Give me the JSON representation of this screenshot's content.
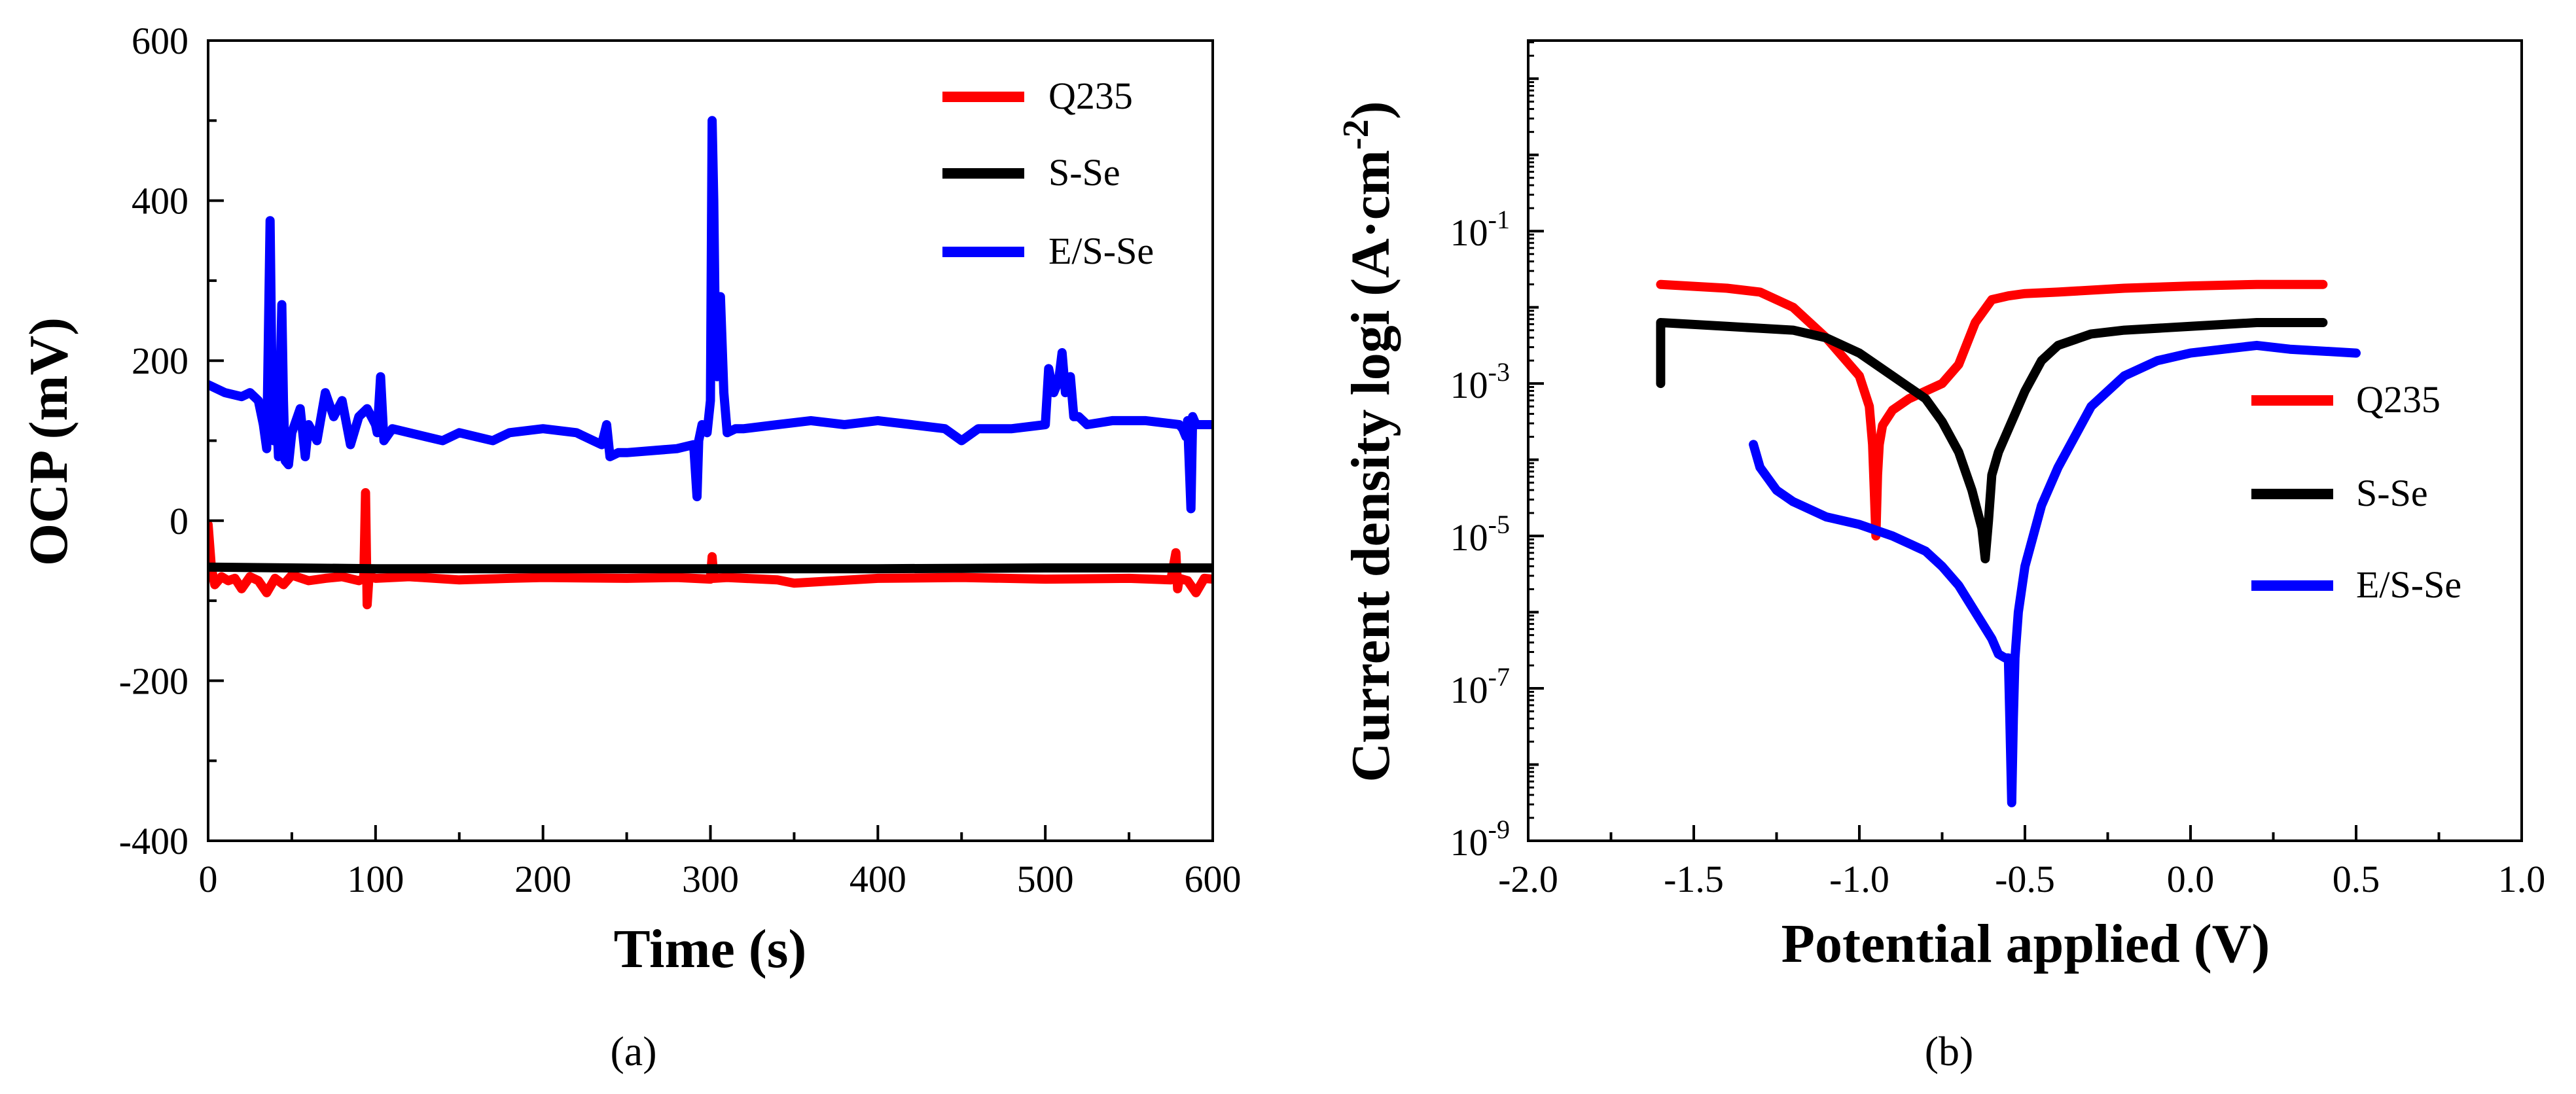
{
  "chart_data": [
    {
      "type": "line",
      "panel_label": "(a)",
      "xlabel": "Time (s)",
      "ylabel": "OCP (mV)",
      "xlim": [
        0,
        600
      ],
      "ylim": [
        -400,
        600
      ],
      "xticks": [
        0,
        100,
        200,
        300,
        400,
        500,
        600
      ],
      "yticks": [
        -400,
        -200,
        0,
        200,
        400,
        600
      ],
      "grid": false,
      "legend_position": "top-right",
      "series": [
        {
          "name": "Q235",
          "color": "#ff0000",
          "x": [
            0,
            2,
            4,
            8,
            12,
            16,
            20,
            25,
            30,
            35,
            40,
            45,
            50,
            60,
            70,
            80,
            90,
            93,
            94,
            95,
            96,
            97,
            100,
            120,
            150,
            180,
            200,
            250,
            280,
            300,
            301,
            302,
            310,
            340,
            350,
            400,
            450,
            500,
            550,
            575,
            578,
            579,
            580,
            585,
            590,
            595,
            600
          ],
          "y": [
            -5,
            -60,
            -80,
            -70,
            -75,
            -72,
            -85,
            -70,
            -75,
            -90,
            -72,
            -80,
            -68,
            -75,
            -72,
            -70,
            -75,
            -72,
            35,
            -105,
            -72,
            -70,
            -72,
            -70,
            -74,
            -72,
            -71,
            -72,
            -71,
            -73,
            -45,
            -72,
            -71,
            -74,
            -78,
            -72,
            -71,
            -73,
            -72,
            -74,
            -40,
            -85,
            -72,
            -75,
            -90,
            -72,
            -73
          ]
        },
        {
          "name": "S-Se",
          "color": "#000000",
          "x": [
            0,
            100,
            200,
            300,
            400,
            500,
            600
          ],
          "y": [
            -58,
            -60,
            -60,
            -60,
            -60,
            -59,
            -59
          ]
        },
        {
          "name": "E/S-Se",
          "color": "#0000ff",
          "x": [
            0,
            10,
            20,
            25,
            30,
            33,
            35,
            37,
            38,
            39,
            40,
            42,
            44,
            45,
            46,
            48,
            50,
            55,
            58,
            60,
            65,
            70,
            75,
            80,
            85,
            90,
            95,
            100,
            101,
            103,
            105,
            110,
            120,
            130,
            140,
            150,
            160,
            170,
            180,
            200,
            220,
            230,
            235,
            238,
            240,
            245,
            250,
            280,
            290,
            292,
            293,
            295,
            298,
            300,
            301,
            302,
            303,
            304,
            305,
            306,
            308,
            310,
            315,
            320,
            340,
            360,
            380,
            400,
            420,
            440,
            450,
            460,
            480,
            500,
            502,
            505,
            508,
            510,
            512,
            515,
            517,
            520,
            525,
            540,
            560,
            580,
            582,
            584,
            585,
            587,
            588,
            590,
            595,
            600
          ],
          "y": [
            170,
            160,
            155,
            160,
            150,
            120,
            90,
            375,
            200,
            100,
            180,
            80,
            270,
            150,
            75,
            70,
            110,
            140,
            80,
            120,
            100,
            160,
            130,
            150,
            95,
            130,
            140,
            120,
            110,
            180,
            100,
            115,
            110,
            105,
            100,
            110,
            105,
            100,
            110,
            115,
            110,
            100,
            95,
            120,
            80,
            85,
            85,
            90,
            95,
            30,
            100,
            120,
            110,
            150,
            500,
            400,
            220,
            180,
            250,
            280,
            160,
            110,
            115,
            115,
            120,
            125,
            120,
            125,
            120,
            115,
            100,
            115,
            115,
            120,
            190,
            160,
            175,
            210,
            160,
            180,
            130,
            130,
            120,
            125,
            125,
            120,
            115,
            105,
            125,
            15,
            130,
            120,
            120,
            120
          ]
        }
      ]
    },
    {
      "type": "line",
      "panel_label": "(b)",
      "xlabel": "Potential applied (V)",
      "ylabel_main": "Current density logi (A·cm",
      "ylabel_exponent": "-2",
      "ylabel_close": ")",
      "yscale": "log",
      "xlim": [
        -2.0,
        1.0
      ],
      "ylim_log10": [
        -9,
        1.5
      ],
      "xticks": [
        -2.0,
        -1.5,
        -1.0,
        -0.5,
        0.0,
        0.5,
        1.0
      ],
      "xtick_labels": [
        "-2.0",
        "-1.5",
        "-1.0",
        "-0.5",
        "0.0",
        "0.5",
        "1.0"
      ],
      "ytick_exponents": [
        -9,
        -7,
        -5,
        -3,
        -1
      ],
      "ytick_labels": [
        {
          "base": "10",
          "exp": "-9"
        },
        {
          "base": "10",
          "exp": "-7"
        },
        {
          "base": "10",
          "exp": "-5"
        },
        {
          "base": "10",
          "exp": "-3"
        },
        {
          "base": "10",
          "exp": "-1"
        }
      ],
      "grid": false,
      "legend_position": "center-right",
      "series": [
        {
          "name": "Q235",
          "color": "#ff0000",
          "x": [
            -1.6,
            -1.4,
            -1.3,
            -1.2,
            -1.1,
            -1.0,
            -0.97,
            -0.96,
            -0.955,
            -0.95,
            -0.945,
            -0.94,
            -0.93,
            -0.9,
            -0.85,
            -0.8,
            -0.75,
            -0.7,
            -0.65,
            -0.6,
            -0.55,
            -0.5,
            -0.4,
            -0.2,
            0.0,
            0.2,
            0.4
          ],
          "y_log10": [
            -1.7,
            -1.75,
            -1.8,
            -2.0,
            -2.4,
            -2.9,
            -3.3,
            -3.8,
            -4.4,
            -5.0,
            -4.2,
            -3.8,
            -3.55,
            -3.35,
            -3.2,
            -3.1,
            -3.0,
            -2.75,
            -2.2,
            -1.9,
            -1.85,
            -1.82,
            -1.8,
            -1.75,
            -1.72,
            -1.7,
            -1.7
          ]
        },
        {
          "name": "S-Se",
          "color": "#000000",
          "x": [
            -1.6,
            -1.6,
            -1.4,
            -1.2,
            -1.1,
            -1.0,
            -0.9,
            -0.8,
            -0.75,
            -0.7,
            -0.66,
            -0.63,
            -0.62,
            -0.61,
            -0.6,
            -0.58,
            -0.55,
            -0.5,
            -0.45,
            -0.4,
            -0.3,
            -0.2,
            0.0,
            0.2,
            0.4
          ],
          "y_log10": [
            -3.0,
            -2.2,
            -2.25,
            -2.3,
            -2.4,
            -2.6,
            -2.9,
            -3.2,
            -3.5,
            -3.9,
            -4.4,
            -4.9,
            -5.3,
            -4.8,
            -4.2,
            -3.9,
            -3.6,
            -3.1,
            -2.7,
            -2.5,
            -2.35,
            -2.3,
            -2.25,
            -2.2,
            -2.2
          ]
        },
        {
          "name": "E/S-Se",
          "color": "#0000ff",
          "x": [
            -1.32,
            -1.3,
            -1.25,
            -1.2,
            -1.1,
            -1.0,
            -0.9,
            -0.8,
            -0.75,
            -0.7,
            -0.65,
            -0.6,
            -0.58,
            -0.56,
            -0.55,
            -0.545,
            -0.54,
            -0.535,
            -0.53,
            -0.52,
            -0.5,
            -0.45,
            -0.4,
            -0.3,
            -0.2,
            -0.1,
            0.0,
            0.1,
            0.2,
            0.3,
            0.5
          ],
          "y_log10": [
            -3.8,
            -4.1,
            -4.4,
            -4.55,
            -4.75,
            -4.85,
            -5.0,
            -5.2,
            -5.4,
            -5.65,
            -6.0,
            -6.35,
            -6.55,
            -6.6,
            -6.6,
            -7.5,
            -8.5,
            -7.4,
            -6.6,
            -6.0,
            -5.4,
            -4.6,
            -4.1,
            -3.3,
            -2.9,
            -2.7,
            -2.6,
            -2.55,
            -2.5,
            -2.55,
            -2.6
          ]
        }
      ]
    }
  ]
}
